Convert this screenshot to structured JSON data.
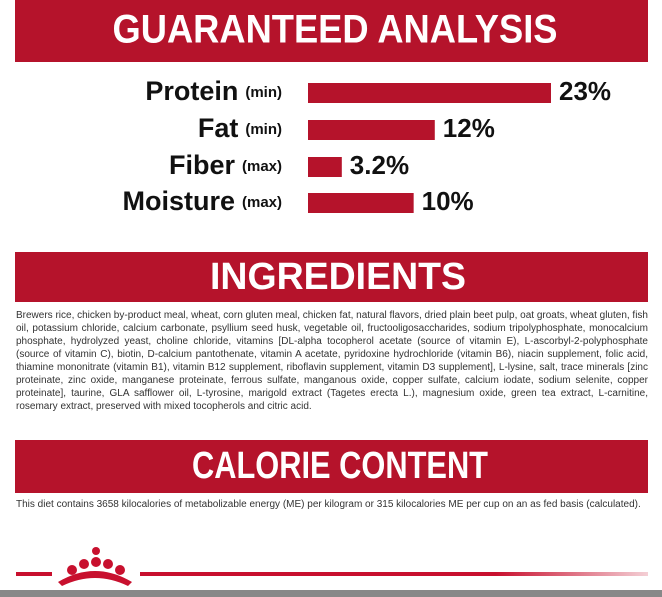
{
  "chart_data": {
    "type": "bar",
    "orientation": "horizontal",
    "title": "GUARANTEED ANALYSIS",
    "categories": [
      "Protein",
      "Fat",
      "Fiber",
      "Moisture"
    ],
    "qualifiers": [
      "(min)",
      "(min)",
      "(max)",
      "(max)"
    ],
    "values": [
      23,
      12,
      3.2,
      10
    ],
    "value_labels": [
      "23%",
      "12%",
      "3.2%",
      "10%"
    ],
    "color": "#b5132b"
  },
  "ingredients": {
    "heading": "INGREDIENTS",
    "text": "Brewers rice, chicken by-product meal, wheat, corn gluten meal, chicken fat, natural flavors, dried plain beet pulp, oat groats, wheat gluten, fish oil, potassium chloride, calcium carbonate, psyllium seed husk, vegetable oil, fructooligosaccharides, sodium tripolyphosphate, monocalcium phosphate, hydrolyzed yeast, choline chloride, vitamins [DL-alpha tocopherol acetate (source of vitamin E), L-ascorbyl-2-polyphosphate (source of vitamin C), biotin, D-calcium pantothenate, vitamin A acetate, pyridoxine hydrochloride (vitamin B6), niacin supplement, folic acid, thiamine mononitrate (vitamin B1), vitamin B12 supplement, riboflavin supplement, vitamin D3 supplement], L-lysine, salt, trace minerals [zinc proteinate, zinc oxide, manganese proteinate, ferrous sulfate, manganous oxide, copper sulfate, calcium iodate, sodium selenite, copper proteinate], taurine, GLA safflower oil, L-tyrosine, marigold extract (Tagetes erecta L.), magnesium oxide, green tea extract, L-carnitine, rosemary extract, preserved with mixed tocopherols and citric acid."
  },
  "calorie_content": {
    "heading": "CALORIE CONTENT",
    "text": "This diet contains 3658 kilocalories of metabolizable energy (ME) per kilogram or 315 kilocalories ME per cup on an as fed basis (calculated)."
  }
}
